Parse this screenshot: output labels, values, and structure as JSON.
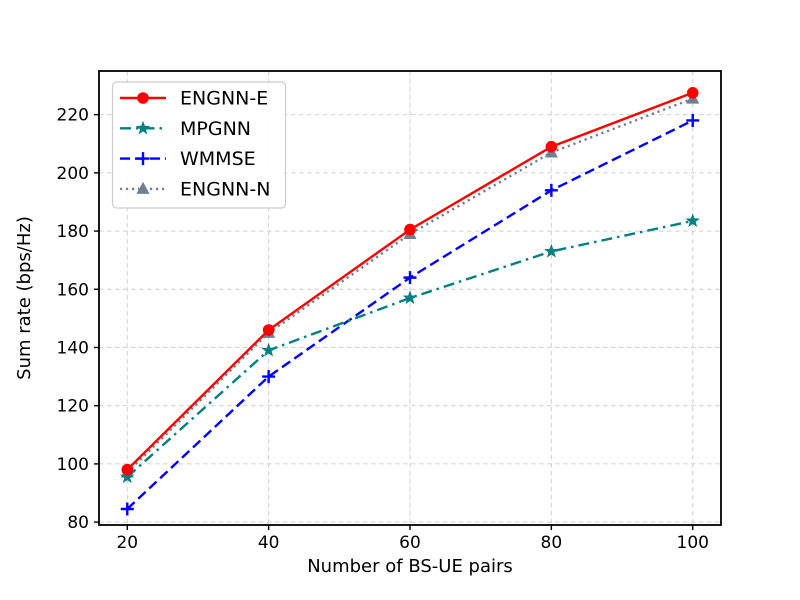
{
  "figure": {
    "background": "#ffffff",
    "axes_edge_color": "#000000",
    "grid_color": "#cfcfcf"
  },
  "chart_data": {
    "type": "line",
    "title": "",
    "xlabel": "Number of BS-UE pairs",
    "ylabel": "Sum rate (bps/Hz)",
    "x": [
      20,
      40,
      60,
      80,
      100
    ],
    "xlim": [
      16,
      104
    ],
    "ylim": [
      79,
      235
    ],
    "xticks": [
      20,
      40,
      60,
      80,
      100
    ],
    "yticks": [
      80,
      100,
      120,
      140,
      160,
      180,
      200,
      220
    ],
    "grid": true,
    "legend_position": "upper left",
    "series": [
      {
        "name": "ENGNN-E",
        "color": "#ff0000",
        "linestyle": "solid",
        "marker": "circle",
        "values": [
          98,
          146,
          180.5,
          209,
          227.5
        ]
      },
      {
        "name": "MPGNN",
        "color": "#008080",
        "linestyle": "dashdot",
        "marker": "star",
        "values": [
          95.5,
          139,
          157,
          173,
          183.5
        ]
      },
      {
        "name": "WMMSE",
        "color": "#0000ff",
        "linestyle": "dashed",
        "marker": "plus",
        "values": [
          84.5,
          130,
          164,
          194,
          218
        ]
      },
      {
        "name": "ENGNN-N",
        "color": "#708090",
        "linestyle": "dotted",
        "marker": "triangle",
        "values": [
          97,
          145,
          179,
          207,
          225.5
        ]
      }
    ]
  }
}
